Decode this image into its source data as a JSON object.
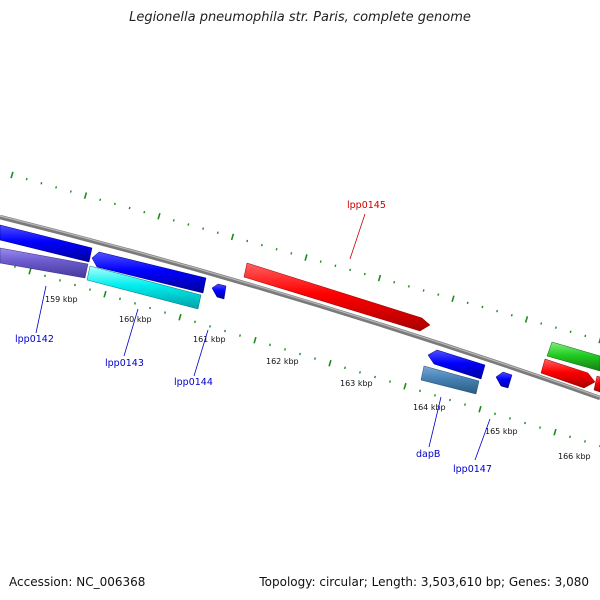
{
  "title": "Legionella pneumophila str. Paris, complete genome",
  "footer": {
    "accession": "Accession: NC_006368",
    "summary": "Topology: circular; Length: 3,503,610 bp; Genes: 3,080"
  },
  "colors": {
    "backbone": "#8a8a8a",
    "tick": "#1f8a1f",
    "label_blue": "#0000cc",
    "label_red": "#cc0000"
  },
  "kbp_labels": [
    "159 kbp",
    "160 kbp",
    "161 kbp",
    "162 kbp",
    "163 kbp",
    "164 kbp",
    "165 kbp",
    "166 kbp"
  ],
  "genes": [
    {
      "name": "lpp0142",
      "color": "#6a5acd"
    },
    {
      "name": "lpp0143",
      "color": "#00e5ee"
    },
    {
      "name": "lpp0144",
      "color": "#0000ff"
    },
    {
      "name": "lpp0145",
      "color": "#ff0000"
    },
    {
      "name": "dapB",
      "color": "#0000ff"
    },
    {
      "name": "lpp0147",
      "color": "#0000ff"
    }
  ]
}
